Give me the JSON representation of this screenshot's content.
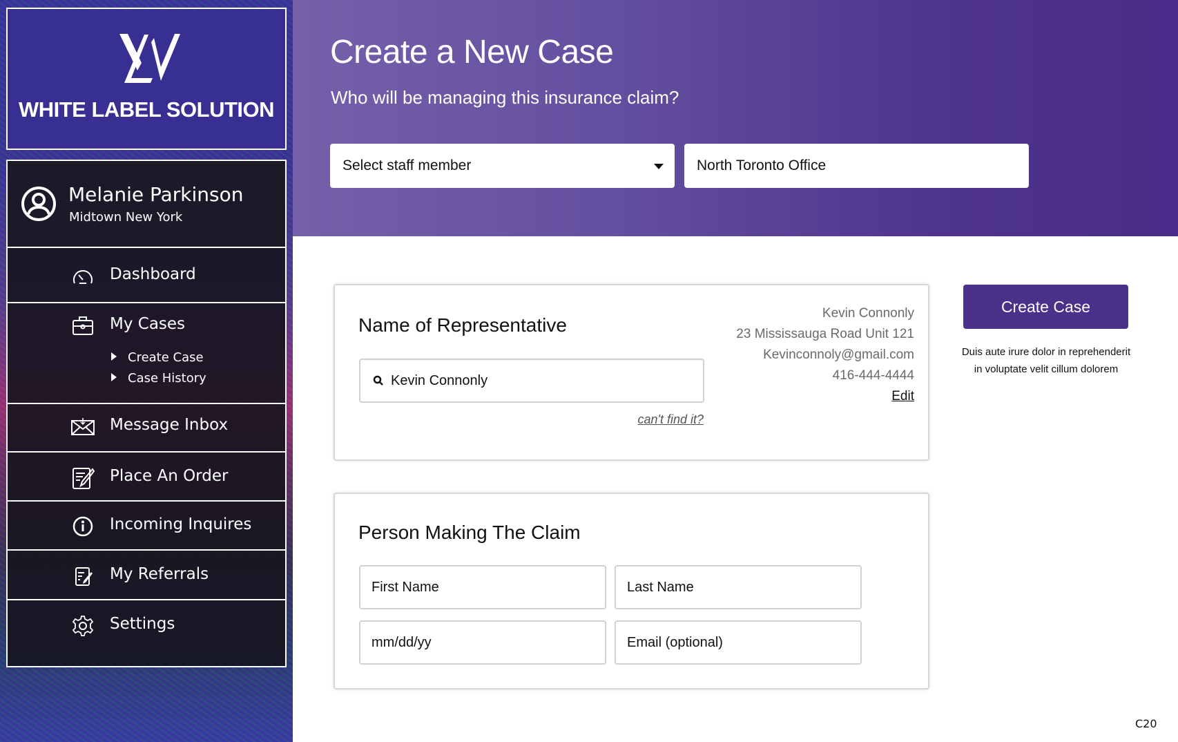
{
  "brand": {
    "name": "WHITE LABEL SOLUTION",
    "logo_text": "WLS"
  },
  "user": {
    "name": "Melanie Parkinson",
    "location": "Midtown New York"
  },
  "nav": [
    {
      "label": "Dashboard",
      "icon": "speedometer-icon"
    },
    {
      "label": "My Cases",
      "icon": "briefcase-icon",
      "children": [
        {
          "label": "Create Case"
        },
        {
          "label": "Case History"
        }
      ]
    },
    {
      "label": "Message Inbox",
      "icon": "envelope-icon"
    },
    {
      "label": "Place An Order",
      "icon": "edit-document-icon"
    },
    {
      "label": "Incoming Inquires",
      "icon": "info-icon"
    },
    {
      "label": "My Referrals",
      "icon": "referral-document-icon"
    },
    {
      "label": "Settings",
      "icon": "gear-icon"
    }
  ],
  "header": {
    "title": "Create a New Case",
    "subtitle": "Who will be managing this insurance claim?",
    "staff_select": "Select staff member",
    "office": "North Toronto Office"
  },
  "representative": {
    "heading": "Name of Representative",
    "search_value": "Kevin Connonly",
    "cant_find": "can't find it?",
    "details": {
      "name": "Kevin Connonly",
      "address": "23 Mississauga Road Unit 121",
      "email": "Kevinconnoly@gmail.com",
      "phone": "416-444-4444",
      "edit": "Edit"
    }
  },
  "claimant": {
    "heading": "Person Making The Claim",
    "first_name": "First Name",
    "last_name": "Last Name",
    "dob": "mm/dd/yy",
    "email": "Email (optional)"
  },
  "actions": {
    "create": "Create Case",
    "description_line1": "Duis aute irure dolor in reprehenderit",
    "description_line2": "in voluptate velit cillum dolorem"
  },
  "page_code": "C20",
  "colors": {
    "accent": "#4a3189",
    "header_start": "#7660aa",
    "header_end": "#4a2d8a",
    "logo_bg": "#372f92"
  }
}
